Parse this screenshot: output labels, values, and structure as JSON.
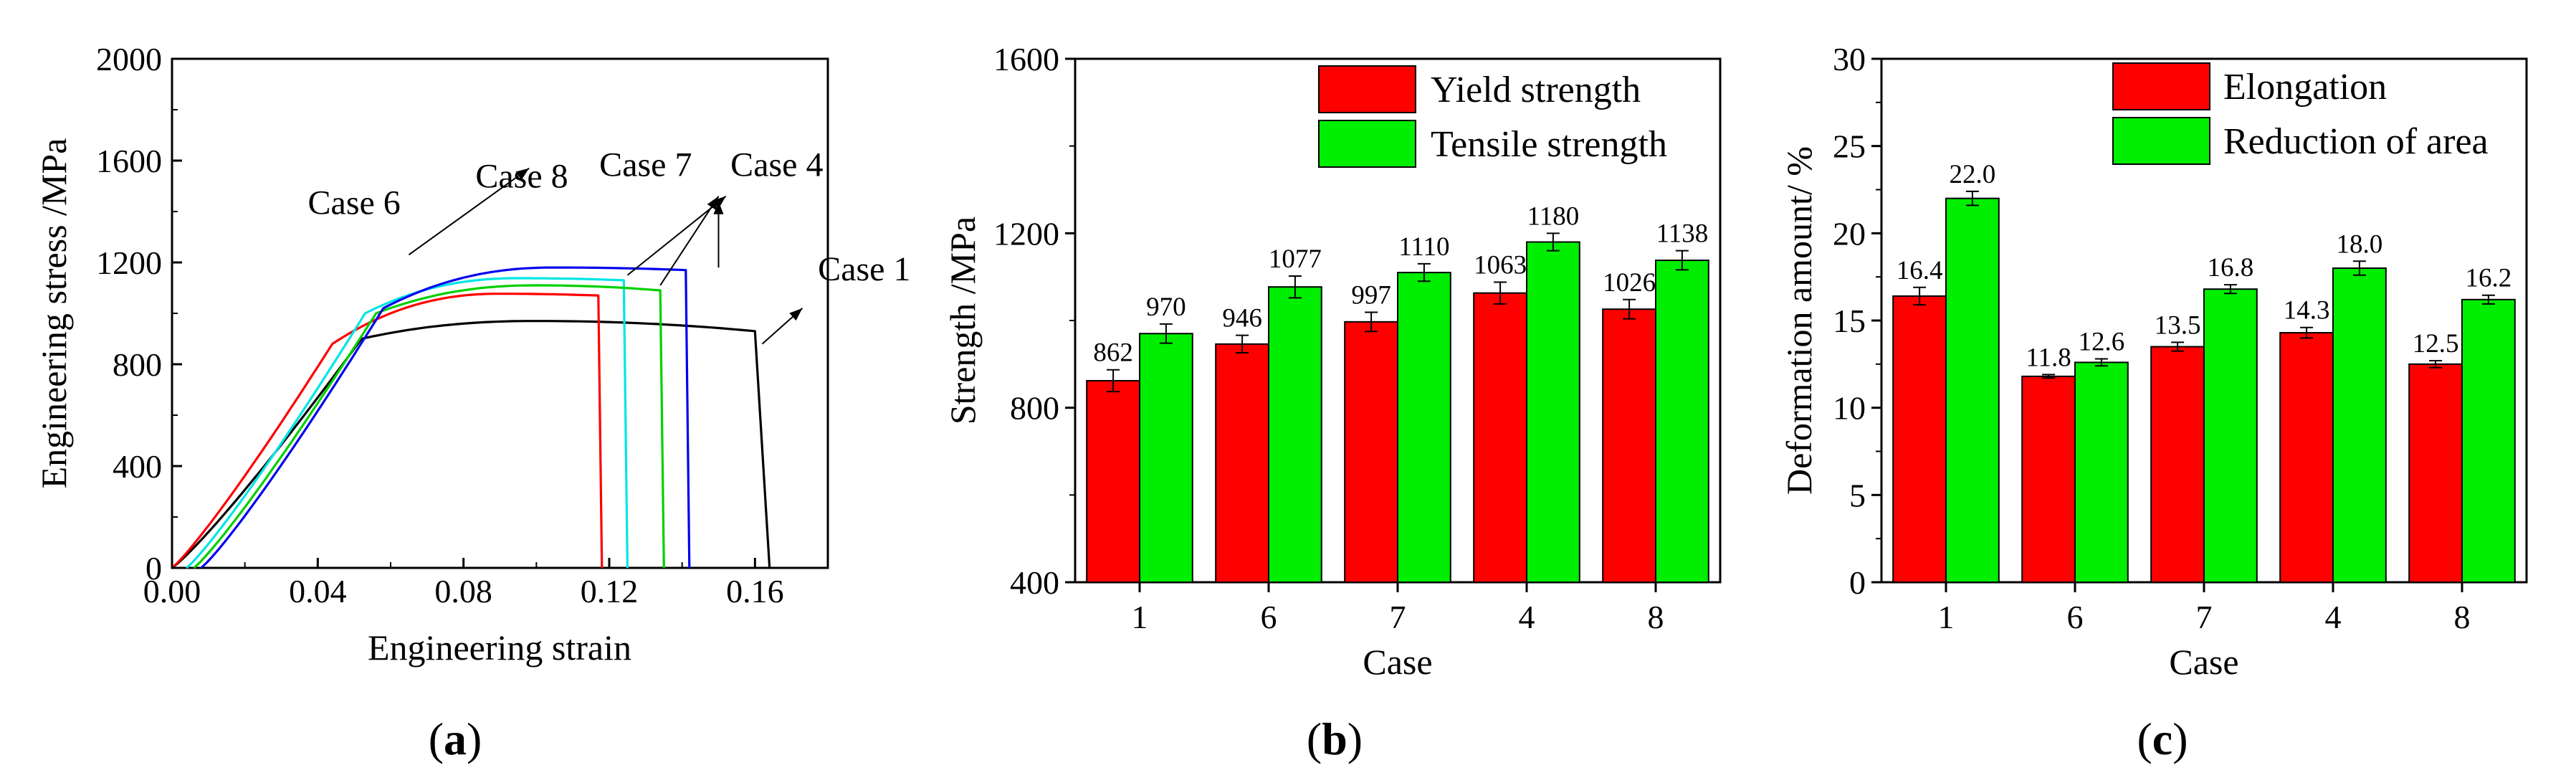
{
  "chart_data": [
    {
      "type": "line",
      "panel_label": {
        "open": "(",
        "letter": "a",
        "close": ")"
      },
      "xlabel": "Engineering strain",
      "ylabel": "Engineering stress /MPa",
      "xlim": [
        0,
        0.18
      ],
      "ylim": [
        0,
        2000
      ],
      "xticks": [
        "0.00",
        "0.04",
        "0.08",
        "0.12",
        "0.16"
      ],
      "xtick_values": [
        0,
        0.04,
        0.08,
        0.12,
        0.16
      ],
      "yticks": [
        "0",
        "400",
        "800",
        "1200",
        "1600",
        "2000"
      ],
      "ytick_values": [
        0,
        400,
        800,
        1200,
        1600,
        2000
      ],
      "series": [
        {
          "name": "Case 1",
          "color": "#000000",
          "x0": 0.0,
          "xk": 0.052,
          "yk": 900,
          "xp": 0.1,
          "peak": 970,
          "xe": 0.16,
          "ye": 930,
          "xf": 0.164
        },
        {
          "name": "Case 6",
          "color": "#ff0000",
          "x0": 0.0,
          "xk": 0.044,
          "yk": 880,
          "xp": 0.09,
          "peak": 1077,
          "xe": 0.117,
          "ye": 1070,
          "xf": 0.118
        },
        {
          "name": "Case 8",
          "color": "#00e5e5",
          "x0": 0.004,
          "xk": 0.053,
          "yk": 1000,
          "xp": 0.095,
          "peak": 1138,
          "xe": 0.124,
          "ye": 1130,
          "xf": 0.125
        },
        {
          "name": "Case 7",
          "color": "#00d000",
          "x0": 0.006,
          "xk": 0.056,
          "yk": 1000,
          "xp": 0.1,
          "peak": 1110,
          "xe": 0.134,
          "ye": 1090,
          "xf": 0.135
        },
        {
          "name": "Case 4",
          "color": "#0000ee",
          "x0": 0.008,
          "xk": 0.058,
          "yk": 1020,
          "xp": 0.105,
          "peak": 1180,
          "xe": 0.141,
          "ye": 1170,
          "xf": 0.142
        }
      ],
      "annotations": [
        {
          "text": "Case 6",
          "tx": 0.05,
          "ty": 1390,
          "ax": 0.065,
          "ay": 1230
        },
        {
          "text": "Case 8",
          "tx": 0.096,
          "ty": 1495,
          "ax": 0.125,
          "ay": 1150
        },
        {
          "text": "Case 7",
          "tx": 0.13,
          "ty": 1540,
          "ax": 0.134,
          "ay": 1110
        },
        {
          "text": "Case 4",
          "tx": 0.166,
          "ty": 1540,
          "ax": 0.15,
          "ay": 1180
        },
        {
          "text": "Case 1",
          "tx": 0.19,
          "ty": 1130,
          "ax": 0.162,
          "ay": 880
        }
      ],
      "arrow_targets": [
        {
          "ax": 0.098,
          "ay": 1570
        },
        {
          "ax": 0.152,
          "ay": 1460
        },
        {
          "ax": 0.15,
          "ay": 1460
        },
        {
          "ax": 0.15,
          "ay": 1440
        },
        {
          "ax": 0.173,
          "ay": 1020
        }
      ]
    },
    {
      "type": "bar",
      "panel_label": {
        "open": "(",
        "letter": "b",
        "close": ")"
      },
      "xlabel": "Case",
      "ylabel": "Strength /MPa",
      "categories": [
        "1",
        "6",
        "7",
        "4",
        "8"
      ],
      "ylim": [
        400,
        1600
      ],
      "yticks": [
        "400",
        "800",
        "1200",
        "1600"
      ],
      "ytick_values": [
        400,
        800,
        1200,
        1600
      ],
      "series": [
        {
          "name": "Yield strength",
          "color": "#ff0000",
          "values": [
            862,
            946,
            997,
            1063,
            1026
          ],
          "errors": [
            25,
            20,
            22,
            25,
            22
          ],
          "labels": [
            "862",
            "946",
            "997",
            "1063",
            "1026"
          ]
        },
        {
          "name": "Tensile strength",
          "color": "#00ee00",
          "values": [
            970,
            1077,
            1110,
            1180,
            1138
          ],
          "errors": [
            22,
            25,
            20,
            20,
            22
          ],
          "labels": [
            "970",
            "1077",
            "1110",
            "1180",
            "1138"
          ]
        }
      ]
    },
    {
      "type": "bar",
      "panel_label": {
        "open": "(",
        "letter": "c",
        "close": ")"
      },
      "xlabel": "Case",
      "ylabel": "Deformation amount/ %",
      "categories": [
        "1",
        "6",
        "7",
        "4",
        "8"
      ],
      "ylim": [
        0,
        30
      ],
      "yticks": [
        "0",
        "5",
        "10",
        "15",
        "20",
        "25",
        "30"
      ],
      "ytick_values": [
        0,
        5,
        10,
        15,
        20,
        25,
        30
      ],
      "series": [
        {
          "name": "Elongation",
          "color": "#ff0000",
          "values": [
            16.4,
            11.8,
            13.5,
            14.3,
            12.5
          ],
          "errors": [
            0.5,
            0.1,
            0.25,
            0.3,
            0.2
          ],
          "labels": [
            "16.4",
            "11.8",
            "13.5",
            "14.3",
            "12.5"
          ]
        },
        {
          "name": "Reduction of area",
          "color": "#00ee00",
          "values": [
            22.0,
            12.6,
            16.8,
            18.0,
            16.2
          ],
          "errors": [
            0.4,
            0.2,
            0.25,
            0.4,
            0.25
          ],
          "labels": [
            "22.0",
            "12.6",
            "16.8",
            "18.0",
            "16.2"
          ]
        }
      ]
    }
  ]
}
